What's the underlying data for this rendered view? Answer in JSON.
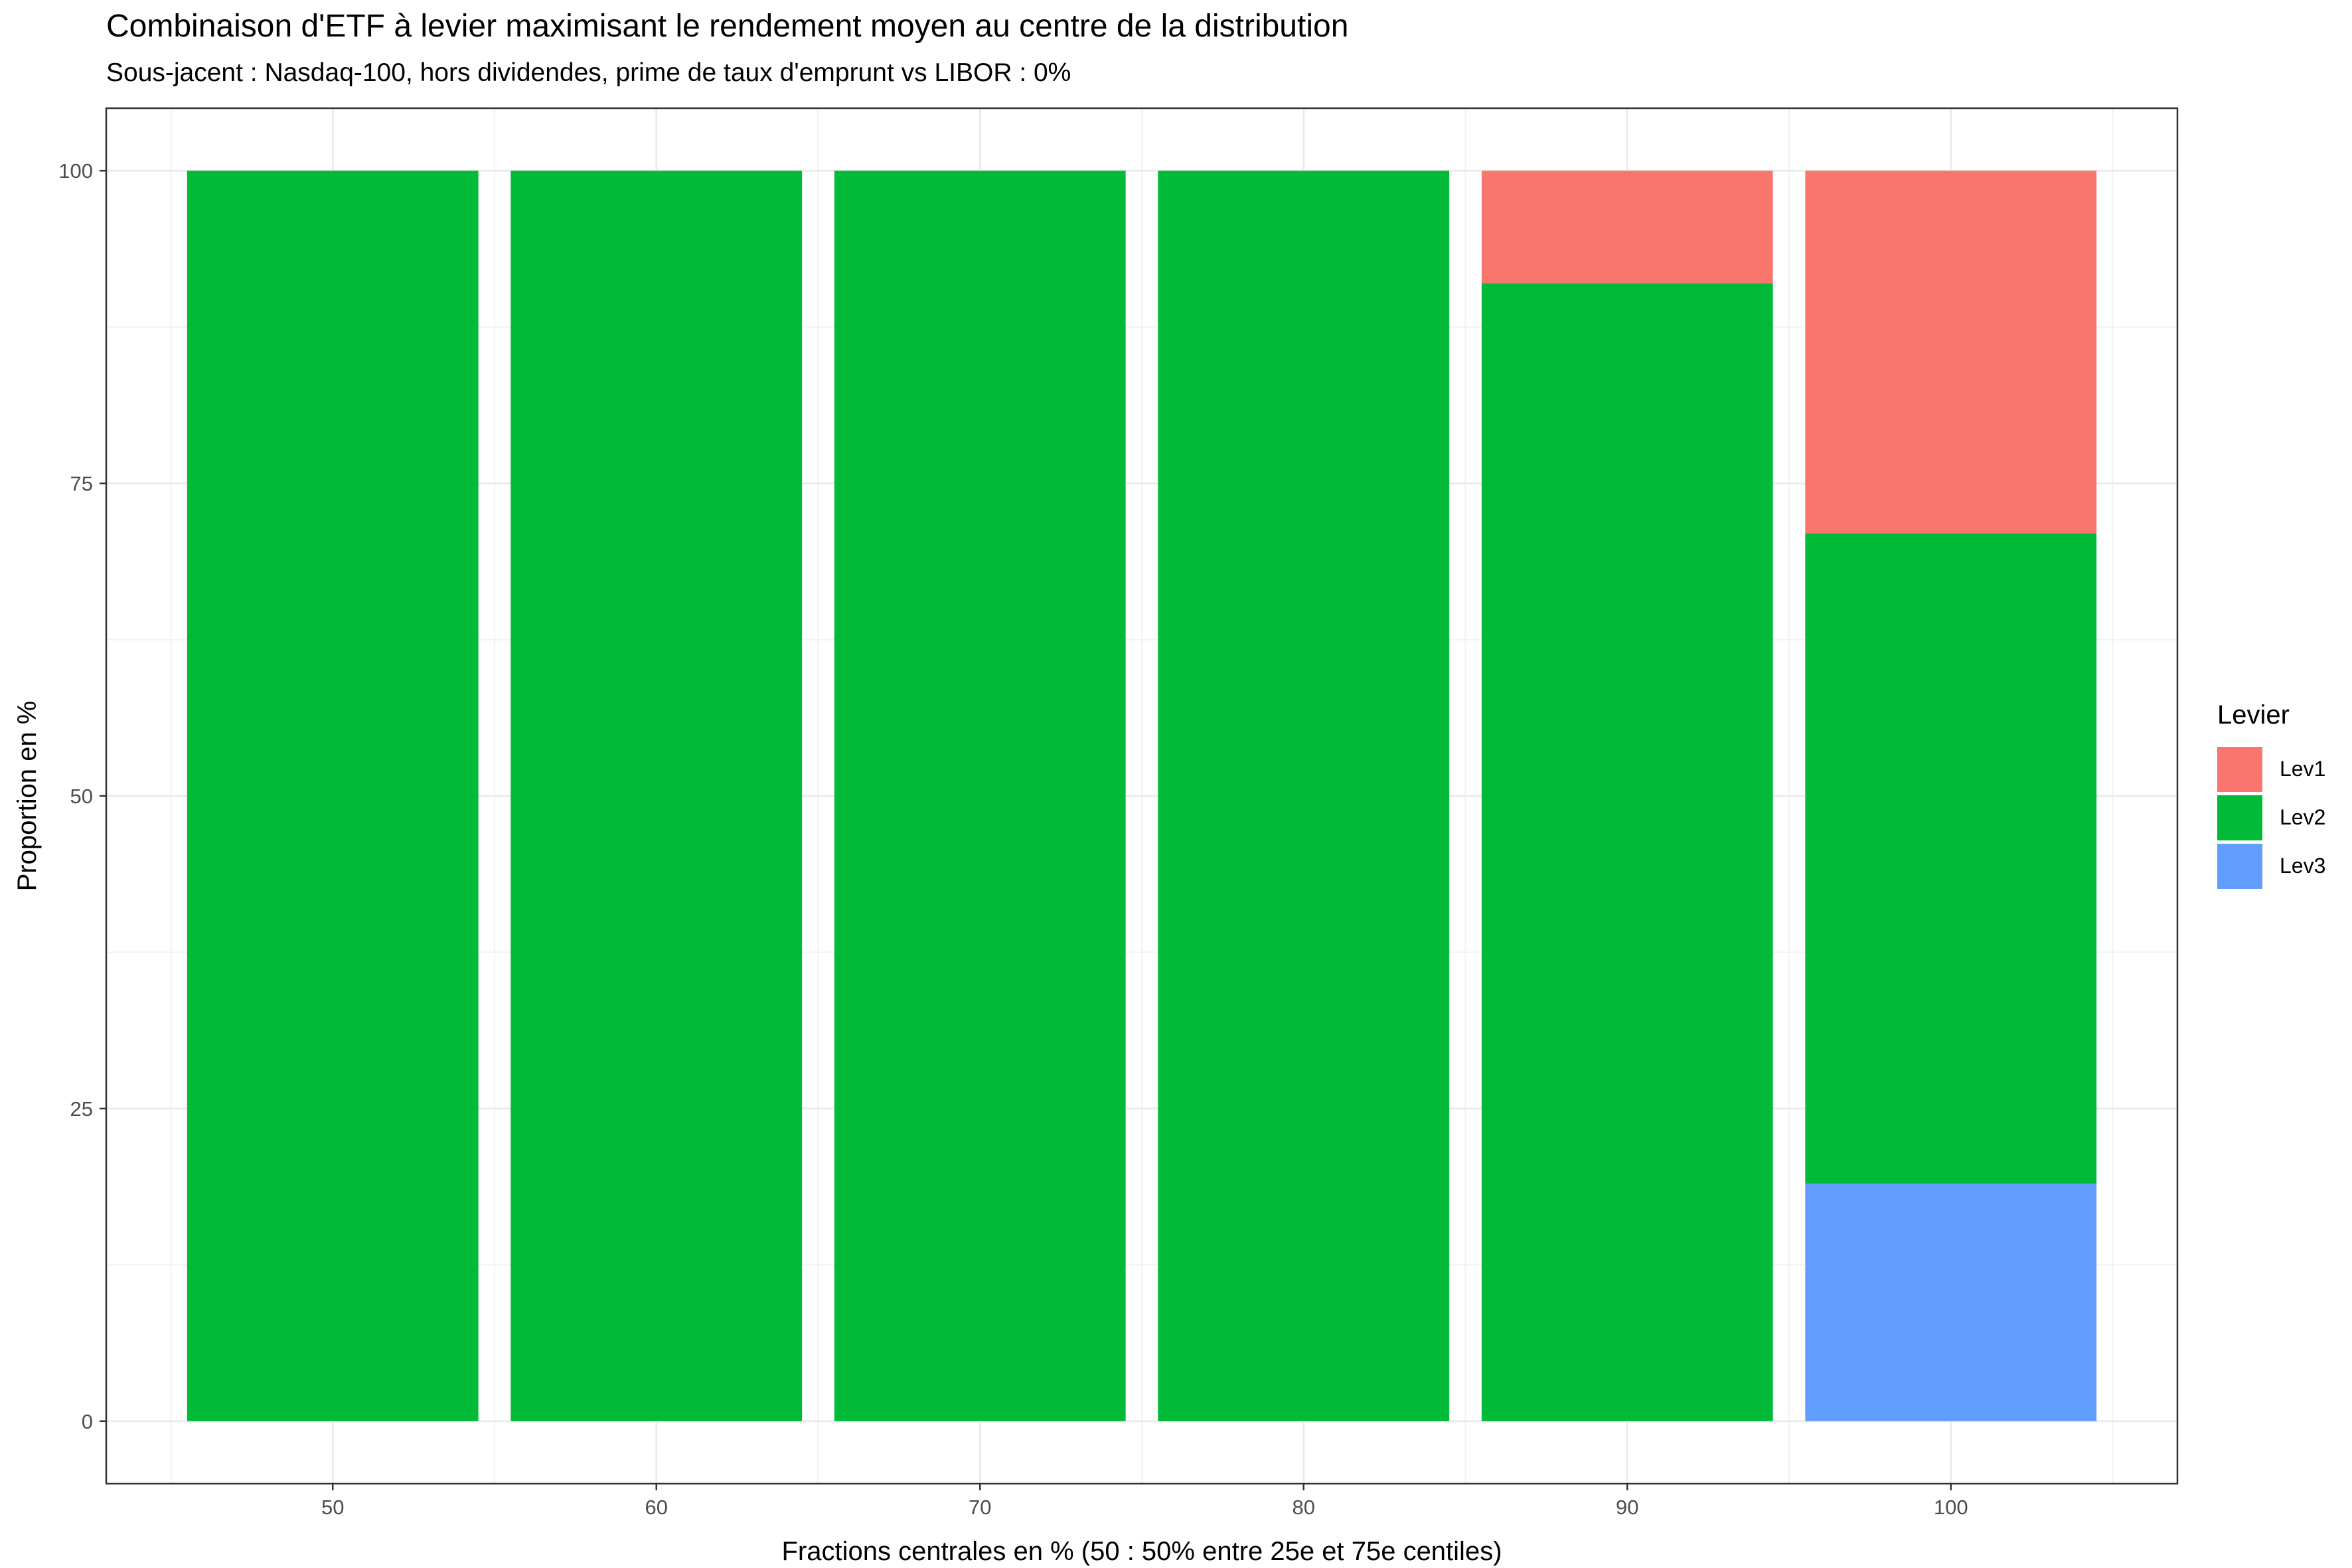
{
  "chart_data": {
    "type": "bar",
    "stacked": true,
    "title": "Combinaison d'ETF à levier maximisant le rendement moyen au centre de la distribution",
    "subtitle": "Sous-jacent : Nasdaq-100, hors dividendes, prime de taux d'emprunt vs LIBOR : 0%",
    "xlabel": "Fractions centrales en % (50 : 50% entre 25e et 75e centiles)",
    "ylabel": "Proportion en %",
    "categories": [
      "50",
      "60",
      "70",
      "80",
      "90",
      "100"
    ],
    "y_ticks": [
      "0",
      "25",
      "50",
      "75",
      "100"
    ],
    "ylim": [
      -5,
      105
    ],
    "grid": true,
    "legend_position": "right",
    "legend_title": "Levier",
    "series": [
      {
        "name": "Lev1",
        "color": "#F8766D",
        "values": [
          0,
          0,
          0,
          0,
          9,
          29
        ]
      },
      {
        "name": "Lev2",
        "color": "#00BA38",
        "values": [
          100,
          100,
          100,
          100,
          91,
          52
        ]
      },
      {
        "name": "Lev3",
        "color": "#619CFF",
        "values": [
          0,
          0,
          0,
          0,
          0,
          19
        ]
      }
    ]
  }
}
